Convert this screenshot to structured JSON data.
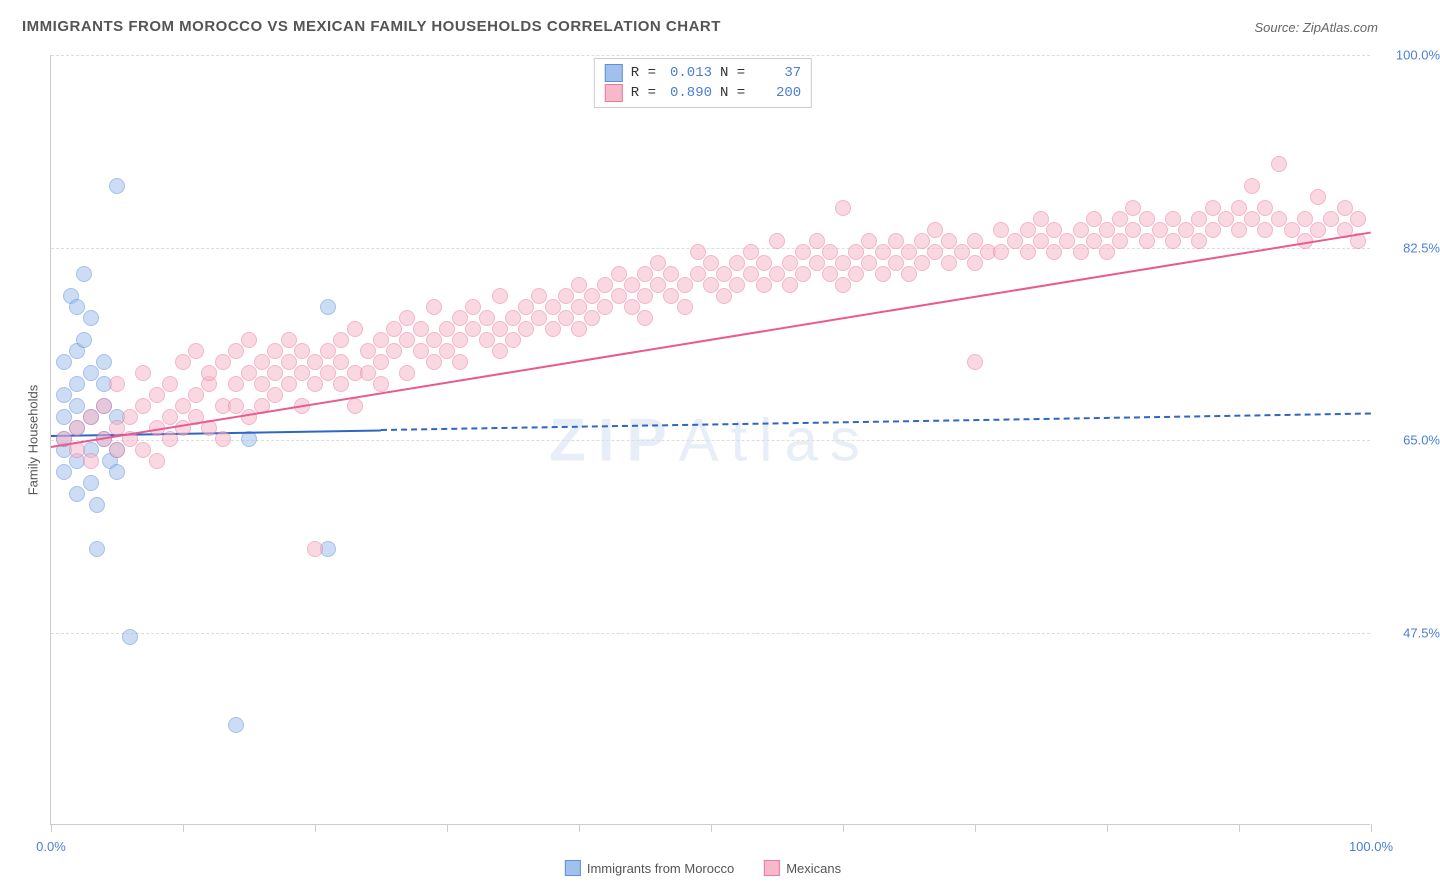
{
  "title": "IMMIGRANTS FROM MOROCCO VS MEXICAN FAMILY HOUSEHOLDS CORRELATION CHART",
  "source_label": "Source: ",
  "source_value": "ZipAtlas.com",
  "y_axis_label": "Family Households",
  "watermark": {
    "part1": "ZIP",
    "part2": "Atlas"
  },
  "plot": {
    "type": "scatter",
    "background_color": "#ffffff",
    "grid_color": "#dddddd",
    "axis_color": "#cccccc",
    "xlim": [
      0,
      100
    ],
    "ylim": [
      30,
      100
    ],
    "y_ticks": [
      {
        "value": 100.0,
        "label": "100.0%"
      },
      {
        "value": 82.5,
        "label": "82.5%"
      },
      {
        "value": 65.0,
        "label": "65.0%"
      },
      {
        "value": 47.5,
        "label": "47.5%"
      }
    ],
    "x_ticks": [
      {
        "value": 0,
        "label": "0.0%"
      },
      {
        "value": 10,
        "label": ""
      },
      {
        "value": 20,
        "label": ""
      },
      {
        "value": 30,
        "label": ""
      },
      {
        "value": 40,
        "label": ""
      },
      {
        "value": 50,
        "label": ""
      },
      {
        "value": 60,
        "label": ""
      },
      {
        "value": 70,
        "label": ""
      },
      {
        "value": 80,
        "label": ""
      },
      {
        "value": 90,
        "label": ""
      },
      {
        "value": 100,
        "label": "100.0%"
      }
    ],
    "marker_radius": 8,
    "marker_opacity": 0.55,
    "tick_label_color": "#4a7fd6",
    "series": [
      {
        "id": "morocco",
        "name": "Immigrants from Morocco",
        "fill": "#a1c1ec",
        "stroke": "#5f8fd9",
        "trend_color": "#2f66c4",
        "trend": {
          "x1": 0,
          "y1": 65.5,
          "x2": 100,
          "y2": 67.5
        },
        "solid_trend_until_x": 25,
        "stats": {
          "R_label": "R =",
          "R": "0.013",
          "N_label": "N =",
          "N": "37"
        },
        "points": [
          [
            1,
            62
          ],
          [
            1,
            64
          ],
          [
            1,
            65
          ],
          [
            1,
            67
          ],
          [
            1,
            69
          ],
          [
            1,
            72
          ],
          [
            1.5,
            78
          ],
          [
            2,
            77
          ],
          [
            2,
            73
          ],
          [
            2,
            70
          ],
          [
            2,
            68
          ],
          [
            2,
            66
          ],
          [
            2,
            63
          ],
          [
            2,
            60
          ],
          [
            2.5,
            80
          ],
          [
            2.5,
            74
          ],
          [
            3,
            76
          ],
          [
            3,
            71
          ],
          [
            3,
            67
          ],
          [
            3,
            64
          ],
          [
            3,
            61
          ],
          [
            3.5,
            59
          ],
          [
            3.5,
            55
          ],
          [
            4,
            72
          ],
          [
            4,
            70
          ],
          [
            4,
            68
          ],
          [
            4,
            65
          ],
          [
            4.5,
            63
          ],
          [
            5,
            88
          ],
          [
            5,
            67
          ],
          [
            5,
            62
          ],
          [
            5,
            64
          ],
          [
            6,
            47
          ],
          [
            14,
            39
          ],
          [
            15,
            65
          ],
          [
            21,
            55
          ],
          [
            21,
            77
          ]
        ]
      },
      {
        "id": "mexicans",
        "name": "Mexicans",
        "fill": "#f7b9c9",
        "stroke": "#ea7aa0",
        "trend_color": "#ea5a90",
        "trend": {
          "x1": 0,
          "y1": 64.5,
          "x2": 100,
          "y2": 84.0
        },
        "solid_trend_until_x": 100,
        "stats": {
          "R_label": "R =",
          "R": "0.890",
          "N_label": "N =",
          "N": "200"
        },
        "points": [
          [
            1,
            65
          ],
          [
            2,
            66
          ],
          [
            2,
            64
          ],
          [
            3,
            67
          ],
          [
            3,
            63
          ],
          [
            4,
            65
          ],
          [
            4,
            68
          ],
          [
            5,
            66
          ],
          [
            5,
            64
          ],
          [
            5,
            70
          ],
          [
            6,
            67
          ],
          [
            6,
            65
          ],
          [
            7,
            64
          ],
          [
            7,
            68
          ],
          [
            7,
            71
          ],
          [
            8,
            66
          ],
          [
            8,
            69
          ],
          [
            8,
            63
          ],
          [
            9,
            67
          ],
          [
            9,
            70
          ],
          [
            9,
            65
          ],
          [
            10,
            72
          ],
          [
            10,
            68
          ],
          [
            10,
            66
          ],
          [
            11,
            69
          ],
          [
            11,
            67
          ],
          [
            11,
            73
          ],
          [
            12,
            70
          ],
          [
            12,
            66
          ],
          [
            12,
            71
          ],
          [
            13,
            68
          ],
          [
            13,
            72
          ],
          [
            13,
            65
          ],
          [
            14,
            70
          ],
          [
            14,
            73
          ],
          [
            14,
            68
          ],
          [
            15,
            71
          ],
          [
            15,
            67
          ],
          [
            15,
            74
          ],
          [
            16,
            70
          ],
          [
            16,
            72
          ],
          [
            16,
            68
          ],
          [
            17,
            71
          ],
          [
            17,
            69
          ],
          [
            17,
            73
          ],
          [
            18,
            72
          ],
          [
            18,
            70
          ],
          [
            18,
            74
          ],
          [
            19,
            71
          ],
          [
            19,
            68
          ],
          [
            19,
            73
          ],
          [
            20,
            72
          ],
          [
            20,
            70
          ],
          [
            20,
            55
          ],
          [
            21,
            73
          ],
          [
            21,
            71
          ],
          [
            22,
            74
          ],
          [
            22,
            70
          ],
          [
            22,
            72
          ],
          [
            23,
            71
          ],
          [
            23,
            75
          ],
          [
            23,
            68
          ],
          [
            24,
            73
          ],
          [
            24,
            71
          ],
          [
            25,
            72
          ],
          [
            25,
            74
          ],
          [
            25,
            70
          ],
          [
            26,
            73
          ],
          [
            26,
            75
          ],
          [
            27,
            74
          ],
          [
            27,
            71
          ],
          [
            27,
            76
          ],
          [
            28,
            73
          ],
          [
            28,
            75
          ],
          [
            29,
            74
          ],
          [
            29,
            72
          ],
          [
            29,
            77
          ],
          [
            30,
            75
          ],
          [
            30,
            73
          ],
          [
            31,
            74
          ],
          [
            31,
            76
          ],
          [
            31,
            72
          ],
          [
            32,
            75
          ],
          [
            32,
            77
          ],
          [
            33,
            74
          ],
          [
            33,
            76
          ],
          [
            34,
            75
          ],
          [
            34,
            78
          ],
          [
            34,
            73
          ],
          [
            35,
            76
          ],
          [
            35,
            74
          ],
          [
            36,
            77
          ],
          [
            36,
            75
          ],
          [
            37,
            76
          ],
          [
            37,
            78
          ],
          [
            38,
            75
          ],
          [
            38,
            77
          ],
          [
            39,
            78
          ],
          [
            39,
            76
          ],
          [
            40,
            77
          ],
          [
            40,
            79
          ],
          [
            40,
            75
          ],
          [
            41,
            78
          ],
          [
            41,
            76
          ],
          [
            42,
            77
          ],
          [
            42,
            79
          ],
          [
            43,
            78
          ],
          [
            43,
            80
          ],
          [
            44,
            77
          ],
          [
            44,
            79
          ],
          [
            45,
            78
          ],
          [
            45,
            80
          ],
          [
            45,
            76
          ],
          [
            46,
            79
          ],
          [
            46,
            81
          ],
          [
            47,
            78
          ],
          [
            47,
            80
          ],
          [
            48,
            79
          ],
          [
            48,
            77
          ],
          [
            49,
            80
          ],
          [
            49,
            82
          ],
          [
            50,
            79
          ],
          [
            50,
            81
          ],
          [
            51,
            80
          ],
          [
            51,
            78
          ],
          [
            52,
            81
          ],
          [
            52,
            79
          ],
          [
            53,
            80
          ],
          [
            53,
            82
          ],
          [
            54,
            79
          ],
          [
            54,
            81
          ],
          [
            55,
            80
          ],
          [
            55,
            83
          ],
          [
            56,
            81
          ],
          [
            56,
            79
          ],
          [
            57,
            82
          ],
          [
            57,
            80
          ],
          [
            58,
            81
          ],
          [
            58,
            83
          ],
          [
            59,
            80
          ],
          [
            59,
            82
          ],
          [
            60,
            81
          ],
          [
            60,
            79
          ],
          [
            60,
            86
          ],
          [
            61,
            82
          ],
          [
            61,
            80
          ],
          [
            62,
            83
          ],
          [
            62,
            81
          ],
          [
            63,
            82
          ],
          [
            63,
            80
          ],
          [
            64,
            81
          ],
          [
            64,
            83
          ],
          [
            65,
            82
          ],
          [
            65,
            80
          ],
          [
            66,
            83
          ],
          [
            66,
            81
          ],
          [
            67,
            82
          ],
          [
            67,
            84
          ],
          [
            68,
            81
          ],
          [
            68,
            83
          ],
          [
            69,
            82
          ],
          [
            70,
            83
          ],
          [
            70,
            81
          ],
          [
            70,
            72
          ],
          [
            71,
            82
          ],
          [
            72,
            84
          ],
          [
            72,
            82
          ],
          [
            73,
            83
          ],
          [
            74,
            82
          ],
          [
            74,
            84
          ],
          [
            75,
            83
          ],
          [
            75,
            85
          ],
          [
            76,
            82
          ],
          [
            76,
            84
          ],
          [
            77,
            83
          ],
          [
            78,
            84
          ],
          [
            78,
            82
          ],
          [
            79,
            83
          ],
          [
            79,
            85
          ],
          [
            80,
            84
          ],
          [
            80,
            82
          ],
          [
            81,
            85
          ],
          [
            81,
            83
          ],
          [
            82,
            84
          ],
          [
            82,
            86
          ],
          [
            83,
            83
          ],
          [
            83,
            85
          ],
          [
            84,
            84
          ],
          [
            85,
            85
          ],
          [
            85,
            83
          ],
          [
            86,
            84
          ],
          [
            87,
            85
          ],
          [
            87,
            83
          ],
          [
            88,
            84
          ],
          [
            88,
            86
          ],
          [
            89,
            85
          ],
          [
            90,
            84
          ],
          [
            90,
            86
          ],
          [
            91,
            85
          ],
          [
            91,
            88
          ],
          [
            92,
            84
          ],
          [
            92,
            86
          ],
          [
            93,
            85
          ],
          [
            93,
            90
          ],
          [
            94,
            84
          ],
          [
            95,
            85
          ],
          [
            95,
            83
          ],
          [
            96,
            84
          ],
          [
            96,
            87
          ],
          [
            97,
            85
          ],
          [
            98,
            84
          ],
          [
            98,
            86
          ],
          [
            99,
            85
          ],
          [
            99,
            83
          ]
        ]
      }
    ]
  },
  "bottom_legend": [
    {
      "label": "Immigrants from Morocco",
      "fill": "#a1c1ec",
      "stroke": "#5f8fd9"
    },
    {
      "label": "Mexicans",
      "fill": "#f7b9c9",
      "stroke": "#ea7aa0"
    }
  ]
}
